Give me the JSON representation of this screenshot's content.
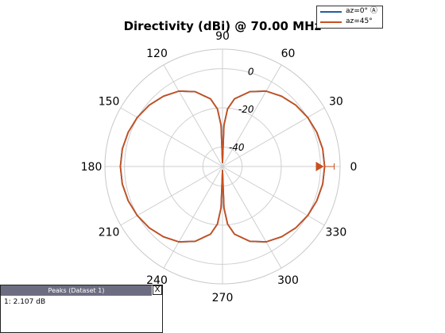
{
  "chart_data": {
    "type": "polar",
    "title": "Directivity (dBi) @ 70.00 MHz",
    "angle_ticks": [
      0,
      30,
      60,
      90,
      120,
      150,
      180,
      210,
      240,
      270,
      300,
      330
    ],
    "r_ticks": [
      0,
      -20,
      -40
    ],
    "r_tick_labels": [
      "0",
      "-20",
      "-40"
    ],
    "rlim": [
      -50,
      10
    ],
    "grid": true,
    "legend_position": "top-right",
    "series": [
      {
        "name": "az=0° Ⓐ",
        "color": "#1f5f9f",
        "theta": [
          0,
          10,
          20,
          30,
          40,
          50,
          60,
          70,
          80,
          85,
          88,
          90,
          92,
          95,
          100,
          110,
          120,
          130,
          140,
          150,
          160,
          170,
          180,
          190,
          200,
          210,
          220,
          230,
          240,
          250,
          260,
          265,
          268,
          270,
          272,
          275,
          280,
          290,
          300,
          310,
          320,
          330,
          340,
          350
        ],
        "r": [
          2.1,
          1.9,
          1.2,
          0.2,
          -1.2,
          -3.1,
          -5.5,
          -9.3,
          -14.9,
          -20.5,
          -28.9,
          -48,
          -28.9,
          -20.5,
          -14.9,
          -9.3,
          -5.5,
          -3.1,
          -1.2,
          0.2,
          1.2,
          1.9,
          2.1,
          1.9,
          1.2,
          0.2,
          -1.2,
          -3.1,
          -5.5,
          -9.3,
          -14.9,
          -20.5,
          -28.9,
          -48,
          -28.9,
          -20.5,
          -14.9,
          -9.3,
          -5.5,
          -3.1,
          -1.2,
          0.2,
          1.2,
          1.9
        ]
      },
      {
        "name": "az=45°",
        "color": "#c8501e",
        "theta": [
          0,
          10,
          20,
          30,
          40,
          50,
          60,
          70,
          80,
          85,
          88,
          90,
          92,
          95,
          100,
          110,
          120,
          130,
          140,
          150,
          160,
          170,
          180,
          190,
          200,
          210,
          220,
          230,
          240,
          250,
          260,
          265,
          268,
          270,
          272,
          275,
          280,
          290,
          300,
          310,
          320,
          330,
          340,
          350
        ],
        "r": [
          2.1,
          1.9,
          1.2,
          0.2,
          -1.2,
          -3.1,
          -5.5,
          -9.3,
          -14.9,
          -20.5,
          -28.9,
          -48,
          -28.9,
          -20.5,
          -14.9,
          -9.3,
          -5.5,
          -3.1,
          -1.2,
          0.2,
          1.2,
          1.9,
          2.1,
          1.9,
          1.2,
          0.2,
          -1.2,
          -3.1,
          -5.5,
          -9.3,
          -14.9,
          -20.5,
          -28.9,
          -48,
          -28.9,
          -20.5,
          -14.9,
          -9.3,
          -5.5,
          -3.1,
          -1.2,
          0.2,
          1.2,
          1.9
        ]
      }
    ],
    "peak_marker": {
      "theta": 0,
      "r": 2.107,
      "color": "#c8501e"
    }
  },
  "legend": {
    "items": [
      {
        "label": "az=0° Ⓐ",
        "color": "#1f5f9f"
      },
      {
        "label": "az=45°",
        "color": "#c8501e"
      }
    ]
  },
  "peaks_panel": {
    "title": "Peaks (Dataset 1)",
    "close_label": "X",
    "entry": "1: 2.107 dB"
  }
}
